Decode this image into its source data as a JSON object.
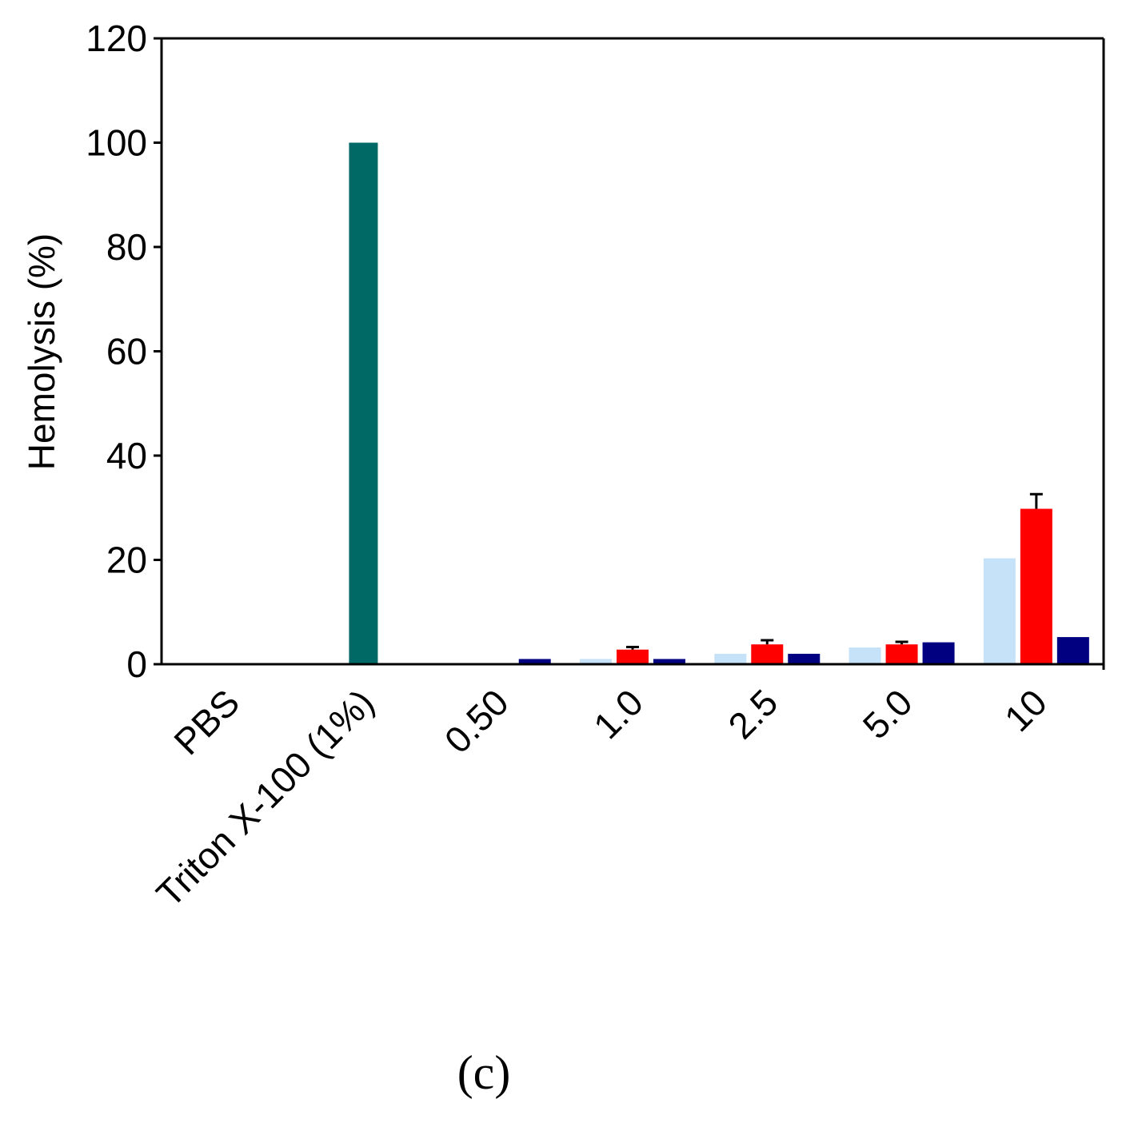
{
  "chart_data": {
    "type": "bar",
    "categories": [
      "PBS",
      "Triton X-100 (1%)",
      "0.50",
      "1.0",
      "2.5",
      "5.0",
      "10"
    ],
    "ylabel": "Hemolysis (%)",
    "xlabel": "",
    "ylim": [
      0,
      120
    ],
    "yticks": [
      "0",
      "20",
      "40",
      "60",
      "80",
      "100",
      "120"
    ],
    "grid": false,
    "panel_label": "(c)",
    "controls": [
      {
        "category": "PBS",
        "value": 0,
        "color": "#006966"
      },
      {
        "category": "Triton X-100 (1%)",
        "value": 100,
        "color": "#006966"
      }
    ],
    "series": [
      {
        "color": "#c6e2f8",
        "values": [
          null,
          null,
          0,
          1.0,
          2.0,
          3.2,
          20.3
        ],
        "errors": [
          null,
          null,
          0,
          0,
          0,
          0,
          0
        ]
      },
      {
        "color": "#ff0000",
        "values": [
          null,
          null,
          0,
          2.8,
          3.8,
          3.8,
          29.8
        ],
        "errors": [
          null,
          null,
          0,
          0.5,
          0.8,
          0.5,
          2.8
        ]
      },
      {
        "color": "#000080",
        "values": [
          null,
          null,
          1.0,
          1.0,
          2.0,
          4.2,
          5.2
        ],
        "errors": [
          null,
          null,
          0,
          0,
          0,
          0,
          0
        ]
      }
    ]
  }
}
